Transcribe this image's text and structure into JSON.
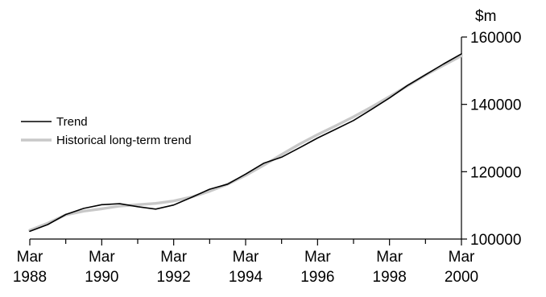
{
  "chart_data": {
    "type": "line",
    "title": "",
    "ylabel": "$m",
    "ylim": [
      100000,
      160000
    ],
    "yticks": [
      100000,
      120000,
      140000,
      160000
    ],
    "ytick_labels": [
      "100000",
      "120000",
      "140000",
      "160000"
    ],
    "xlim": [
      1988.0,
      2000.0
    ],
    "xticks": [
      1988,
      1990,
      1992,
      1994,
      1996,
      1998,
      2000
    ],
    "xtick_labels": [
      {
        "month": "Mar",
        "year": "1988"
      },
      {
        "month": "Mar",
        "year": "1990"
      },
      {
        "month": "Mar",
        "year": "1992"
      },
      {
        "month": "Mar",
        "year": "1994"
      },
      {
        "month": "Mar",
        "year": "1996"
      },
      {
        "month": "Mar",
        "year": "1998"
      },
      {
        "month": "Mar",
        "year": "2000"
      }
    ],
    "grid": false,
    "legend": {
      "position": "left"
    },
    "series": [
      {
        "name": "Trend",
        "color": "#000000",
        "x": [
          1988.0,
          1988.5,
          1989.0,
          1989.5,
          1990.0,
          1990.5,
          1991.0,
          1991.5,
          1992.0,
          1992.5,
          1993.0,
          1993.5,
          1994.0,
          1994.5,
          1995.0,
          1995.5,
          1996.0,
          1996.5,
          1997.0,
          1997.5,
          1998.0,
          1998.5,
          1999.0,
          1999.5,
          2000.0
        ],
        "values": [
          102300,
          104300,
          107300,
          109100,
          110200,
          110500,
          109600,
          108900,
          110100,
          112400,
          114800,
          116300,
          119300,
          122500,
          124300,
          127100,
          130000,
          132600,
          135200,
          138500,
          141900,
          145600,
          148800,
          152000,
          155000
        ]
      },
      {
        "name": "Historical long-term trend",
        "color": "#c8c8c8",
        "x": [
          1988.0,
          1988.5,
          1989.0,
          1989.5,
          1990.0,
          1990.5,
          1991.0,
          1991.5,
          1992.0,
          1992.5,
          1993.0,
          1993.5,
          1994.0,
          1994.5,
          1995.0,
          1995.5,
          1996.0,
          1996.5,
          1997.0,
          1997.5,
          1998.0,
          1998.5,
          1999.0,
          1999.5,
          2000.0
        ],
        "values": [
          102600,
          104700,
          107200,
          108300,
          109000,
          109800,
          110200,
          110600,
          111300,
          112500,
          114200,
          116300,
          118900,
          121900,
          125100,
          128200,
          131000,
          133600,
          136300,
          139200,
          142300,
          145500,
          148700,
          151600,
          154400
        ]
      }
    ]
  }
}
